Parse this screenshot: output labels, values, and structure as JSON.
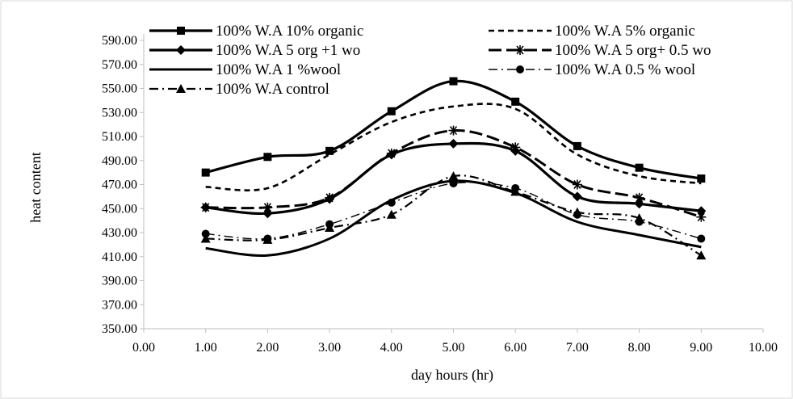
{
  "chart_data": {
    "type": "line",
    "xlabel": "day hours (hr)",
    "ylabel": "heat content",
    "xlim": [
      0,
      10
    ],
    "ylim": [
      350,
      590
    ],
    "x_ticks": [
      "0.00",
      "1.00",
      "2.00",
      "3.00",
      "4.00",
      "5.00",
      "6.00",
      "7.00",
      "8.00",
      "9.00",
      "10.00"
    ],
    "y_ticks": [
      "350.00",
      "370.00",
      "390.00",
      "410.00",
      "430.00",
      "450.00",
      "470.00",
      "490.00",
      "510.00",
      "530.00",
      "550.00",
      "570.00",
      "590.00"
    ],
    "grid": false,
    "legend_position": "top",
    "x": [
      1,
      2,
      3,
      4,
      5,
      6,
      7,
      8,
      9
    ],
    "series": [
      {
        "name": "100% W.A 10% organic",
        "values": [
          480,
          493,
          498,
          531,
          556,
          539,
          502,
          484,
          475
        ],
        "style": "solid",
        "marker": "square",
        "width": 3.2
      },
      {
        "name": "100% W.A 5% organic",
        "values": [
          468,
          467,
          495,
          522,
          535,
          533,
          495,
          477,
          471
        ],
        "style": "dash",
        "marker": "none",
        "width": 2.6
      },
      {
        "name": "100% W.A 5 org +1 wo",
        "values": [
          451,
          446,
          458,
          495,
          504,
          498,
          460,
          454,
          448
        ],
        "style": "solid",
        "marker": "diamond",
        "width": 3.2
      },
      {
        "name": "100% W.A 5 org+ 0.5 wo",
        "values": [
          451,
          451,
          459,
          496,
          515,
          501,
          470,
          459,
          443
        ],
        "style": "longdash",
        "marker": "asterisk",
        "width": 3.0
      },
      {
        "name": "100% W.A 1 %wool",
        "values": [
          417,
          411,
          425,
          457,
          473,
          463,
          439,
          428,
          418
        ],
        "style": "solid",
        "marker": "none",
        "width": 3.0
      },
      {
        "name": "100% W.A 0.5 % wool",
        "values": [
          429,
          425,
          437,
          455,
          471,
          467,
          445,
          439,
          425
        ],
        "style": "dashdot",
        "marker": "circle",
        "width": 1.4
      },
      {
        "name": "100% W.A control",
        "values": [
          425,
          424,
          434,
          445,
          477,
          464,
          447,
          442,
          411
        ],
        "style": "dashdot",
        "marker": "triangle",
        "width": 2.2
      }
    ]
  }
}
